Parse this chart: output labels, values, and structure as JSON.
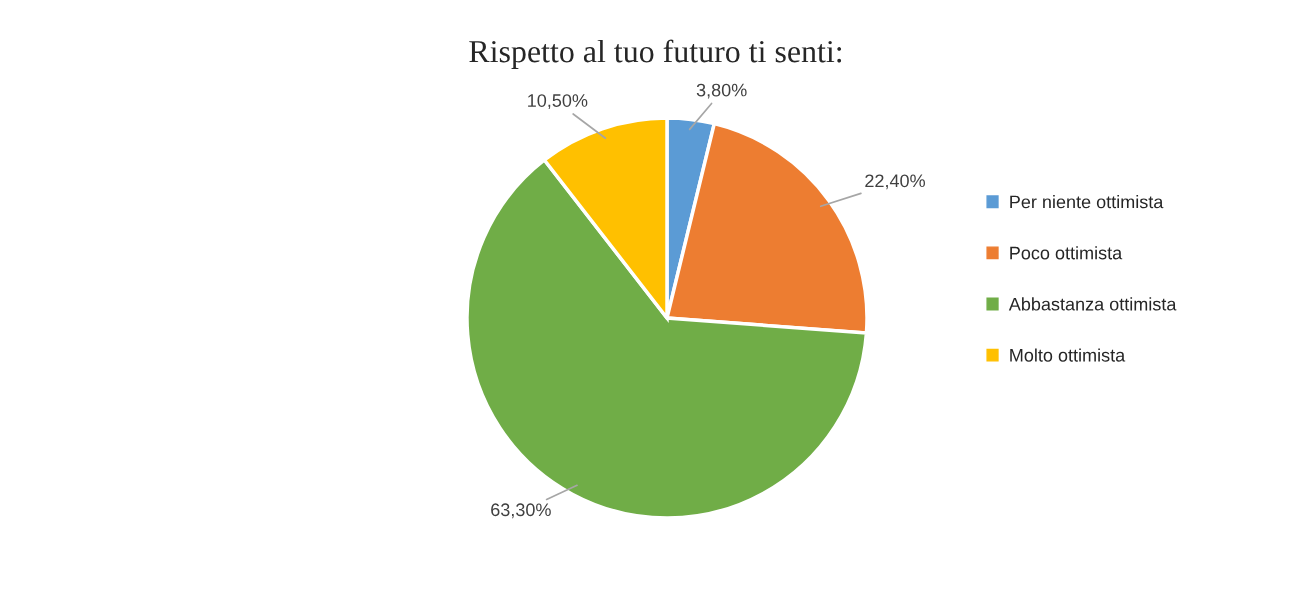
{
  "chart_data": {
    "type": "pie",
    "title": "Rispetto al tuo futuro ti senti:",
    "categories": [
      "Per niente ottimista",
      "Poco ottimista",
      "Abbastanza ottimista",
      "Molto ottimista"
    ],
    "values": [
      3.8,
      22.4,
      63.3,
      10.5
    ],
    "value_labels": [
      "3,80%",
      "22,40%",
      "63,30%",
      "10,50%"
    ],
    "colors": [
      "#5b9bd5",
      "#ed7d31",
      "#70ad47",
      "#ffc000"
    ],
    "legend": "right"
  }
}
